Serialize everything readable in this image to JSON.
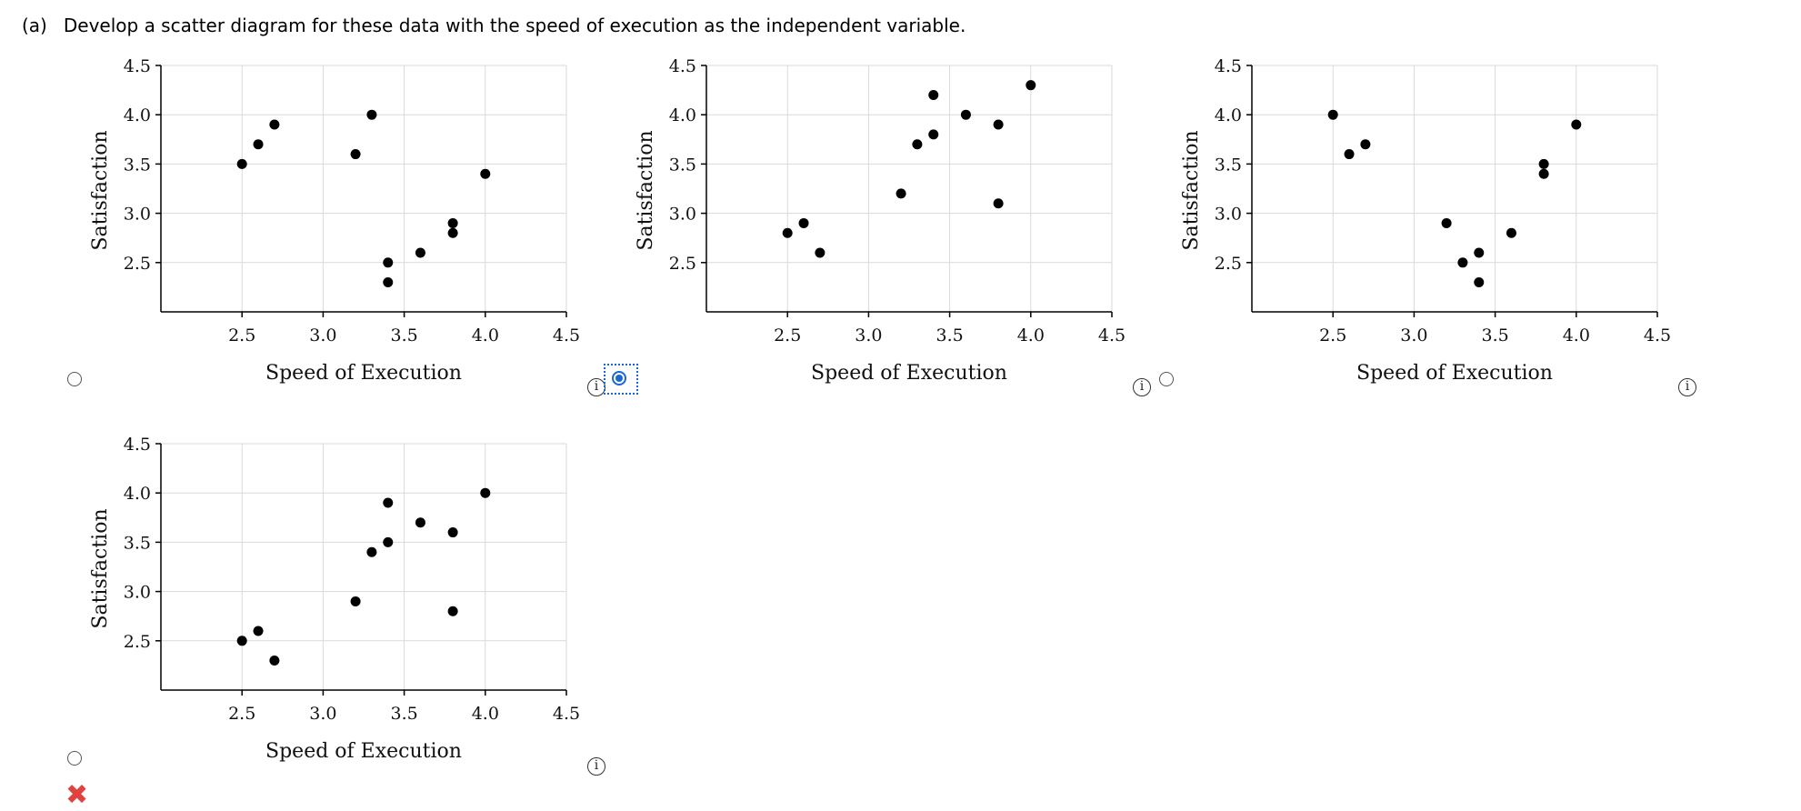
{
  "question": {
    "part": "(a)",
    "text": "Develop a scatter diagram for these data with the speed of execution as the independent variable."
  },
  "info_icon_glyph": "i",
  "wrong_mark_glyph": "✖",
  "colors": {
    "accent": "#1a66d6",
    "wrong": "#e0423f",
    "point": "#000000",
    "grid": "#d9d9d9"
  },
  "options": [
    {
      "selected": false,
      "marked_wrong": false
    },
    {
      "selected": true,
      "marked_wrong": false
    },
    {
      "selected": false,
      "marked_wrong": false
    },
    {
      "selected": false,
      "marked_wrong": true
    }
  ],
  "chart_data": [
    {
      "type": "scatter",
      "xlabel": "Speed of Execution",
      "ylabel": "Satisfaction",
      "xlim": [
        2.0,
        4.5
      ],
      "ylim": [
        2.0,
        4.5
      ],
      "xticks": [
        "2.5",
        "3.0",
        "3.5",
        "4.0",
        "4.5"
      ],
      "yticks": [
        "2.5",
        "3.0",
        "3.5",
        "4.0",
        "4.5"
      ],
      "grid": true,
      "points": [
        [
          2.5,
          3.5
        ],
        [
          2.6,
          3.7
        ],
        [
          2.7,
          3.9
        ],
        [
          3.2,
          3.6
        ],
        [
          3.3,
          4.0
        ],
        [
          3.4,
          2.5
        ],
        [
          3.4,
          2.3
        ],
        [
          3.6,
          2.6
        ],
        [
          3.8,
          2.9
        ],
        [
          3.8,
          2.8
        ],
        [
          4.0,
          3.4
        ]
      ]
    },
    {
      "type": "scatter",
      "xlabel": "Speed of Execution",
      "ylabel": "Satisfaction",
      "xlim": [
        2.0,
        4.5
      ],
      "ylim": [
        2.0,
        4.5
      ],
      "xticks": [
        "2.5",
        "3.0",
        "3.5",
        "4.0",
        "4.5"
      ],
      "yticks": [
        "2.5",
        "3.0",
        "3.5",
        "4.0",
        "4.5"
      ],
      "grid": true,
      "points": [
        [
          2.5,
          2.8
        ],
        [
          2.6,
          2.9
        ],
        [
          2.7,
          2.6
        ],
        [
          3.2,
          3.2
        ],
        [
          3.3,
          3.7
        ],
        [
          3.4,
          3.8
        ],
        [
          3.4,
          4.2
        ],
        [
          3.6,
          4.0
        ],
        [
          3.8,
          3.9
        ],
        [
          3.8,
          3.1
        ],
        [
          4.0,
          4.3
        ]
      ]
    },
    {
      "type": "scatter",
      "xlabel": "Speed of Execution",
      "ylabel": "Satisfaction",
      "xlim": [
        2.0,
        4.5
      ],
      "ylim": [
        2.0,
        4.5
      ],
      "xticks": [
        "2.5",
        "3.0",
        "3.5",
        "4.0",
        "4.5"
      ],
      "yticks": [
        "2.5",
        "3.0",
        "3.5",
        "4.0",
        "4.5"
      ],
      "grid": true,
      "points": [
        [
          2.5,
          4.0
        ],
        [
          2.6,
          3.6
        ],
        [
          2.7,
          3.7
        ],
        [
          3.2,
          2.9
        ],
        [
          3.3,
          2.5
        ],
        [
          3.4,
          2.6
        ],
        [
          3.4,
          2.3
        ],
        [
          3.6,
          2.8
        ],
        [
          3.8,
          3.5
        ],
        [
          3.8,
          3.4
        ],
        [
          4.0,
          3.9
        ]
      ]
    },
    {
      "type": "scatter",
      "xlabel": "Speed of Execution",
      "ylabel": "Satisfaction",
      "xlim": [
        2.0,
        4.5
      ],
      "ylim": [
        2.0,
        4.5
      ],
      "xticks": [
        "2.5",
        "3.0",
        "3.5",
        "4.0",
        "4.5"
      ],
      "yticks": [
        "2.5",
        "3.0",
        "3.5",
        "4.0",
        "4.5"
      ],
      "grid": true,
      "points": [
        [
          2.5,
          2.5
        ],
        [
          2.6,
          2.6
        ],
        [
          2.7,
          2.3
        ],
        [
          3.2,
          2.9
        ],
        [
          3.3,
          3.4
        ],
        [
          3.4,
          3.5
        ],
        [
          3.4,
          3.9
        ],
        [
          3.6,
          3.7
        ],
        [
          3.8,
          3.6
        ],
        [
          3.8,
          2.8
        ],
        [
          4.0,
          4.0
        ]
      ]
    }
  ]
}
